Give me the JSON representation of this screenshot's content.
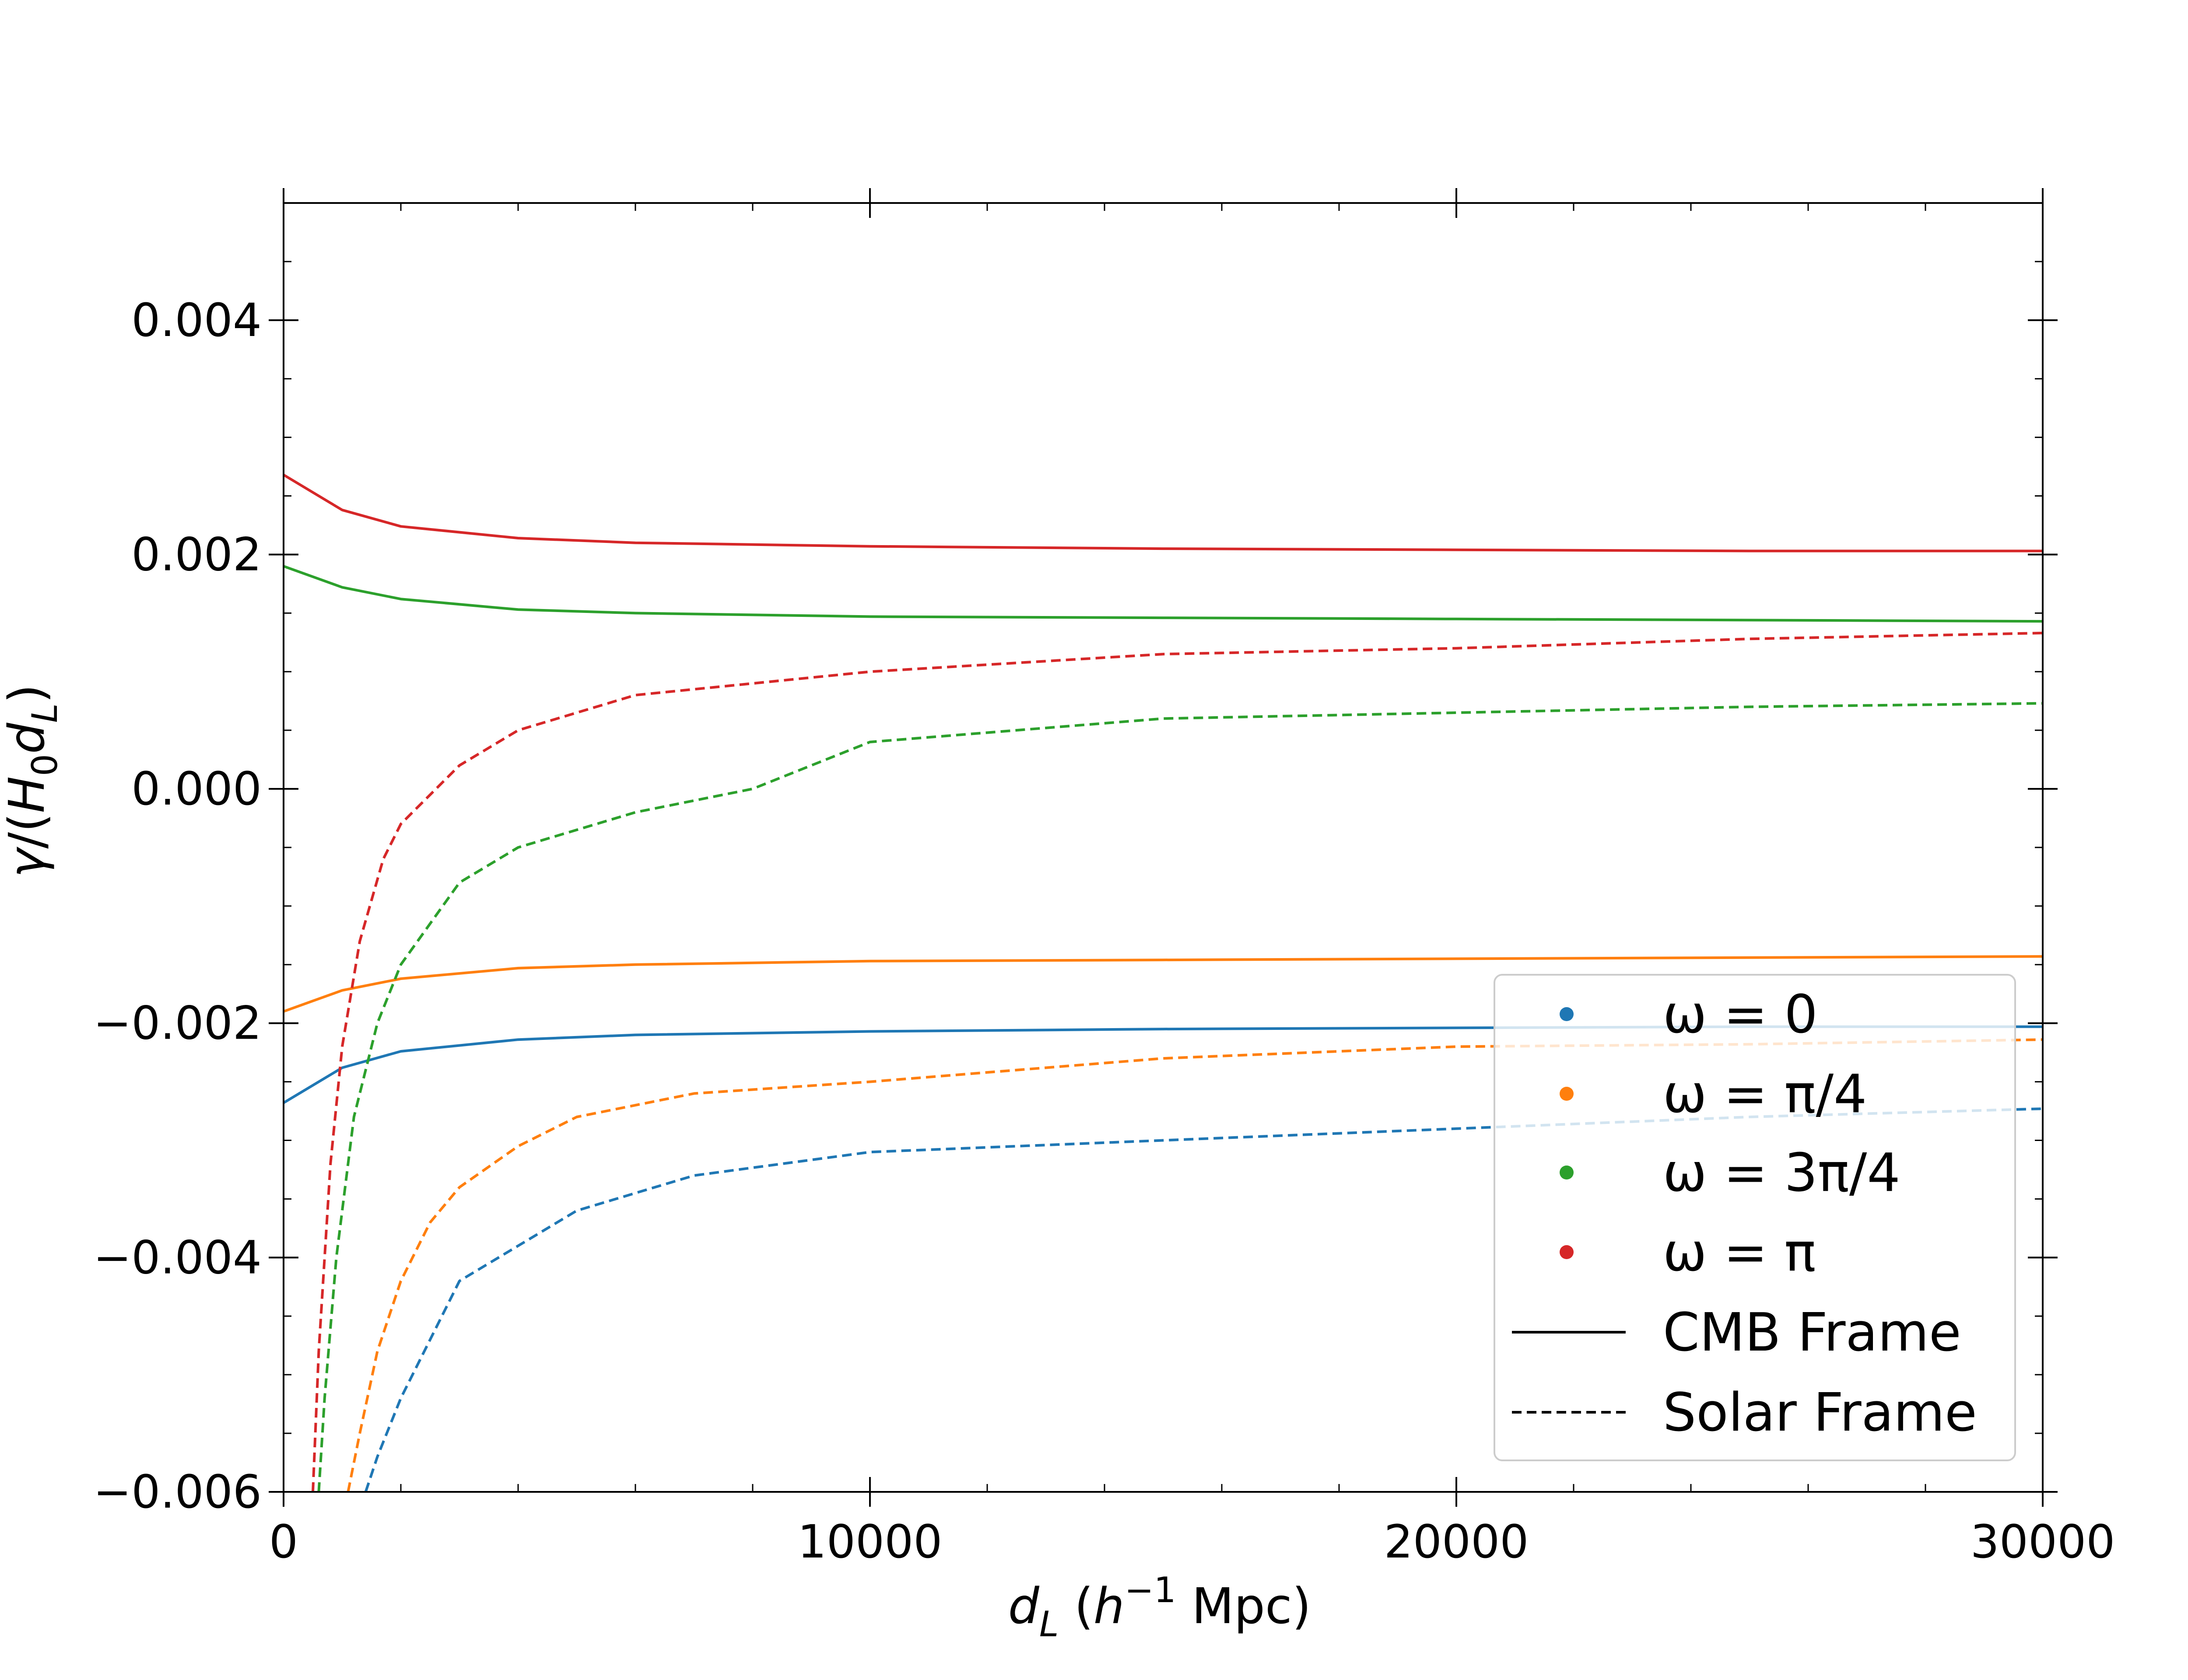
{
  "chart_data": {
    "type": "line",
    "title": "",
    "xlabel": "d_L (h^-1 Mpc)",
    "ylabel": "γ/(H_0 d_L)",
    "xlim": [
      0,
      30000
    ],
    "ylim": [
      -0.006,
      0.005
    ],
    "x_ticks": [
      0,
      10000,
      20000,
      30000
    ],
    "x_tick_labels": [
      "0",
      "10000",
      "20000",
      "30000"
    ],
    "y_ticks": [
      -0.006,
      -0.004,
      -0.002,
      0.0,
      0.002,
      0.004
    ],
    "y_tick_labels": [
      "−0.006",
      "−0.004",
      "−0.002",
      "0.000",
      "0.002",
      "0.004"
    ],
    "grid": false,
    "legend_position": "lower-right",
    "legend": [
      {
        "label": "ω = 0",
        "color": "#1f77b4",
        "marker": "dot"
      },
      {
        "label": "ω = π/4",
        "color": "#ff7f0e",
        "marker": "dot"
      },
      {
        "label": "ω = 3π/4",
        "color": "#2ca02c",
        "marker": "dot"
      },
      {
        "label": "ω = π",
        "color": "#d62728",
        "marker": "dot"
      },
      {
        "label": "CMB Frame",
        "color": "#000000",
        "marker": "solid-line"
      },
      {
        "label": "Solar Frame",
        "color": "#000000",
        "marker": "dashed-line"
      }
    ],
    "series": [
      {
        "name": "ω = 0 CMB Frame",
        "color": "#1f77b4",
        "style": "solid",
        "x": [
          0,
          1000,
          2000,
          4000,
          6000,
          10000,
          15000,
          20000,
          25000,
          30000
        ],
        "y": [
          -0.00268,
          -0.00238,
          -0.00224,
          -0.00214,
          -0.0021,
          -0.00207,
          -0.00205,
          -0.00204,
          -0.00203,
          -0.00203
        ]
      },
      {
        "name": "ω = π/4 CMB Frame",
        "color": "#ff7f0e",
        "style": "solid",
        "x": [
          0,
          1000,
          2000,
          4000,
          6000,
          10000,
          15000,
          20000,
          25000,
          30000
        ],
        "y": [
          -0.0019,
          -0.00172,
          -0.00162,
          -0.00153,
          -0.0015,
          -0.00147,
          -0.00146,
          -0.00145,
          -0.00144,
          -0.00143
        ]
      },
      {
        "name": "ω = 3π/4 CMB Frame",
        "color": "#2ca02c",
        "style": "solid",
        "x": [
          0,
          1000,
          2000,
          4000,
          6000,
          10000,
          15000,
          20000,
          25000,
          30000
        ],
        "y": [
          0.0019,
          0.00172,
          0.00162,
          0.00153,
          0.0015,
          0.00147,
          0.00146,
          0.00145,
          0.00144,
          0.00143
        ]
      },
      {
        "name": "ω = π CMB Frame",
        "color": "#d62728",
        "style": "solid",
        "x": [
          0,
          1000,
          2000,
          4000,
          6000,
          10000,
          15000,
          20000,
          25000,
          30000
        ],
        "y": [
          0.00268,
          0.00238,
          0.00224,
          0.00214,
          0.0021,
          0.00207,
          0.00205,
          0.00204,
          0.00203,
          0.00203
        ]
      },
      {
        "name": "ω = 0 Solar Frame",
        "color": "#1f77b4",
        "style": "dashed",
        "x": [
          1400,
          1600,
          2000,
          2500,
          3000,
          4000,
          5000,
          7000,
          10000,
          15000,
          20000,
          25000,
          30000
        ],
        "y": [
          -0.006,
          -0.0057,
          -0.0052,
          -0.0047,
          -0.0042,
          -0.0039,
          -0.0036,
          -0.0033,
          -0.0031,
          -0.003,
          -0.0029,
          -0.0028,
          -0.00273
        ]
      },
      {
        "name": "ω = π/4 Solar Frame",
        "color": "#ff7f0e",
        "style": "dashed",
        "x": [
          1100,
          1300,
          1600,
          2000,
          2500,
          3000,
          4000,
          5000,
          7000,
          10000,
          15000,
          20000,
          25000,
          30000
        ],
        "y": [
          -0.006,
          -0.0055,
          -0.0048,
          -0.0042,
          -0.0037,
          -0.0034,
          -0.00305,
          -0.0028,
          -0.0026,
          -0.0025,
          -0.0023,
          -0.0022,
          -0.00218,
          -0.00214
        ]
      },
      {
        "name": "ω = 3π/4 Solar Frame",
        "color": "#2ca02c",
        "style": "dashed",
        "x": [
          600,
          700,
          900,
          1200,
          1600,
          2000,
          3000,
          4000,
          6000,
          8000,
          10000,
          15000,
          20000,
          25000,
          30000
        ],
        "y": [
          -0.006,
          -0.0052,
          -0.004,
          -0.0028,
          -0.002,
          -0.0015,
          -0.0008,
          -0.0005,
          -0.0002,
          0.0,
          0.0004,
          0.0006,
          0.00065,
          0.0007,
          0.00073
        ]
      },
      {
        "name": "ω = π Solar Frame",
        "color": "#d62728",
        "style": "dashed",
        "x": [
          500,
          600,
          800,
          1000,
          1300,
          1700,
          2000,
          3000,
          4000,
          6000,
          8000,
          10000,
          15000,
          20000,
          25000,
          30000
        ],
        "y": [
          -0.006,
          -0.0048,
          -0.0032,
          -0.0022,
          -0.0013,
          -0.0006,
          -0.0003,
          0.0002,
          0.0005,
          0.0008,
          0.0009,
          0.001,
          0.00115,
          0.0012,
          0.00128,
          0.00133
        ]
      }
    ]
  }
}
